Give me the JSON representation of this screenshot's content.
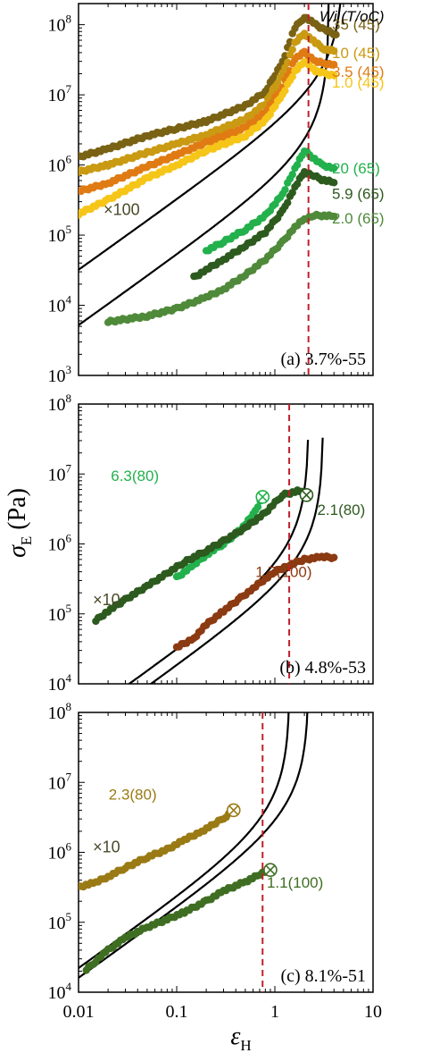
{
  "figure": {
    "ylabel_main": "σ",
    "ylabel_sub": "E",
    "ylabel_unit": " (Pa)",
    "xlabel_main": "ε",
    "xlabel_sub": "H",
    "legend_header": "Wi (T/oC)",
    "x_ticks": [
      "0.01",
      "0.1",
      "1",
      "10"
    ]
  },
  "chart_data": [
    {
      "type": "scatter",
      "panel_label": "(a) 3.7%-55",
      "xscale": "log",
      "yscale": "log",
      "xlim": [
        0.01,
        10
      ],
      "ylim": [
        1000,
        200000000
      ],
      "y_ticks": [
        {
          "value": 1000,
          "base": "10",
          "exp": "3"
        },
        {
          "value": 10000,
          "base": "10",
          "exp": "4"
        },
        {
          "value": 100000,
          "base": "10",
          "exp": "5"
        },
        {
          "value": 1000000,
          "base": "10",
          "exp": "6"
        },
        {
          "value": 10000000,
          "base": "10",
          "exp": "7"
        },
        {
          "value": 100000000,
          "base": "10",
          "exp": "8"
        }
      ],
      "annotations": [
        "×100"
      ],
      "vline_x": 2.2,
      "series": [
        {
          "name": "35 (45)",
          "color": "#7a6214",
          "x": [
            0.01,
            0.02,
            0.05,
            0.1,
            0.2,
            0.5,
            0.8,
            1.2,
            1.6,
            2.0,
            2.6,
            3.2,
            4.2
          ],
          "y": [
            1300000,
            1700000,
            2600000,
            3300000,
            4200000,
            7000000,
            11000000,
            30000000,
            90000000,
            130000000,
            100000000,
            85000000,
            72000000
          ]
        },
        {
          "name": "10 (45)",
          "color": "#c99a12",
          "x": [
            0.01,
            0.02,
            0.05,
            0.1,
            0.2,
            0.5,
            0.8,
            1.2,
            1.6,
            2.0,
            2.6,
            3.2,
            4.0
          ],
          "y": [
            800000,
            1000000,
            1500000,
            2000000,
            2700000,
            4500000,
            7500000,
            20000000,
            55000000,
            75000000,
            55000000,
            45000000,
            42000000
          ]
        },
        {
          "name": "3.5 (45)",
          "color": "#e07b14",
          "x": [
            0.01,
            0.02,
            0.05,
            0.1,
            0.2,
            0.5,
            0.8,
            1.2,
            1.6,
            2.0,
            2.6,
            3.2,
            4.0
          ],
          "y": [
            420000,
            550000,
            950000,
            1400000,
            2100000,
            3400000,
            5600000,
            13000000,
            33000000,
            40000000,
            30000000,
            28000000,
            27000000
          ]
        },
        {
          "name": "1.0 (45)",
          "color": "#f5c518",
          "x": [
            0.01,
            0.02,
            0.05,
            0.1,
            0.2,
            0.5,
            0.8,
            1.2,
            1.6,
            2.0,
            2.6,
            3.2,
            4.0
          ],
          "y": [
            200000,
            320000,
            650000,
            1000000,
            1600000,
            2600000,
            4300000,
            10000000,
            22000000,
            30000000,
            22000000,
            20000000,
            19000000
          ]
        },
        {
          "name": "20 (65)",
          "color": "#22b14c",
          "x": [
            0.2,
            0.3,
            0.5,
            0.8,
            1.2,
            1.6,
            2.0,
            2.4,
            3.0,
            4.0
          ],
          "y": [
            60000,
            80000,
            120000,
            190000,
            380000,
            900000,
            1600000,
            1300000,
            1000000,
            900000
          ]
        },
        {
          "name": "5.9 (65)",
          "color": "#2d5a1e",
          "x": [
            0.15,
            0.2,
            0.3,
            0.5,
            0.8,
            1.2,
            1.6,
            2.0,
            2.5,
            3.0,
            4.0
          ],
          "y": [
            25000,
            32000,
            45000,
            70000,
            110000,
            220000,
            480000,
            800000,
            700000,
            620000,
            560000
          ]
        },
        {
          "name": "2.0 (65)",
          "color": "#4f8a3a",
          "x": [
            0.02,
            0.05,
            0.1,
            0.2,
            0.3,
            0.5,
            0.8,
            1.2,
            1.6,
            2.0,
            2.5,
            3.0,
            4.0
          ],
          "y": [
            5800,
            7000,
            9000,
            13000,
            17000,
            27000,
            45000,
            80000,
            130000,
            170000,
            190000,
            190000,
            185000
          ]
        }
      ]
    },
    {
      "type": "scatter",
      "panel_label": "(b) 4.8%-53",
      "xscale": "log",
      "yscale": "log",
      "xlim": [
        0.01,
        10
      ],
      "ylim": [
        10000,
        100000000
      ],
      "y_ticks": [
        {
          "value": 10000,
          "base": "10",
          "exp": "4"
        },
        {
          "value": 100000,
          "base": "10",
          "exp": "5"
        },
        {
          "value": 1000000,
          "base": "10",
          "exp": "6"
        },
        {
          "value": 10000000,
          "base": "10",
          "exp": "7"
        },
        {
          "value": 100000000,
          "base": "10",
          "exp": "8"
        }
      ],
      "annotations": [
        "×10"
      ],
      "vline_x": 1.4,
      "series": [
        {
          "name": "6.3(80)",
          "color": "#22b14c",
          "x": [
            0.1,
            0.15,
            0.2,
            0.3,
            0.45,
            0.6,
            0.75
          ],
          "y": [
            330000,
            500000,
            700000,
            1000000,
            1600000,
            2600000,
            4700000
          ]
        },
        {
          "name": "2.1(80)",
          "color": "#2d5a1e",
          "x": [
            0.015,
            0.02,
            0.03,
            0.05,
            0.08,
            0.12,
            0.2,
            0.3,
            0.5,
            0.8,
            1.2,
            1.8,
            2.1
          ],
          "y": [
            80000,
            110000,
            160000,
            250000,
            380000,
            550000,
            800000,
            1100000,
            1700000,
            2800000,
            5000000,
            5800000,
            5000000
          ]
        },
        {
          "name": "1.7(100)",
          "color": "#8b3a12",
          "x": [
            0.1,
            0.15,
            0.2,
            0.3,
            0.45,
            0.6,
            0.8,
            1.0,
            1.4,
            2.0,
            3.0,
            4.0
          ],
          "y": [
            33000,
            45000,
            70000,
            110000,
            170000,
            230000,
            320000,
            400000,
            500000,
            600000,
            650000,
            640000
          ]
        }
      ]
    },
    {
      "type": "scatter",
      "panel_label": "(c) 8.1%-51",
      "xscale": "log",
      "yscale": "log",
      "xlim": [
        0.01,
        10
      ],
      "ylim": [
        10000,
        100000000
      ],
      "y_ticks": [
        {
          "value": 10000,
          "base": "10",
          "exp": "4"
        },
        {
          "value": 100000,
          "base": "10",
          "exp": "5"
        },
        {
          "value": 1000000,
          "base": "10",
          "exp": "6"
        },
        {
          "value": 10000000,
          "base": "10",
          "exp": "7"
        },
        {
          "value": 100000000,
          "base": "10",
          "exp": "8"
        }
      ],
      "annotations": [
        "×10"
      ],
      "vline_x": 0.75,
      "series": [
        {
          "name": "2.3(80)",
          "color": "#9a7a14",
          "x": [
            0.01,
            0.015,
            0.02,
            0.03,
            0.05,
            0.08,
            0.12,
            0.18,
            0.25,
            0.32,
            0.38
          ],
          "y": [
            320000,
            370000,
            450000,
            600000,
            850000,
            1100000,
            1500000,
            2000000,
            2600000,
            3300000,
            4000000
          ]
        },
        {
          "name": "1.1(100)",
          "color": "#3f6e22",
          "x": [
            0.012,
            0.015,
            0.02,
            0.03,
            0.05,
            0.08,
            0.12,
            0.2,
            0.3,
            0.5,
            0.7,
            0.9
          ],
          "y": [
            21000,
            28000,
            40000,
            60000,
            85000,
            110000,
            140000,
            200000,
            280000,
            380000,
            480000,
            560000
          ]
        }
      ]
    }
  ]
}
